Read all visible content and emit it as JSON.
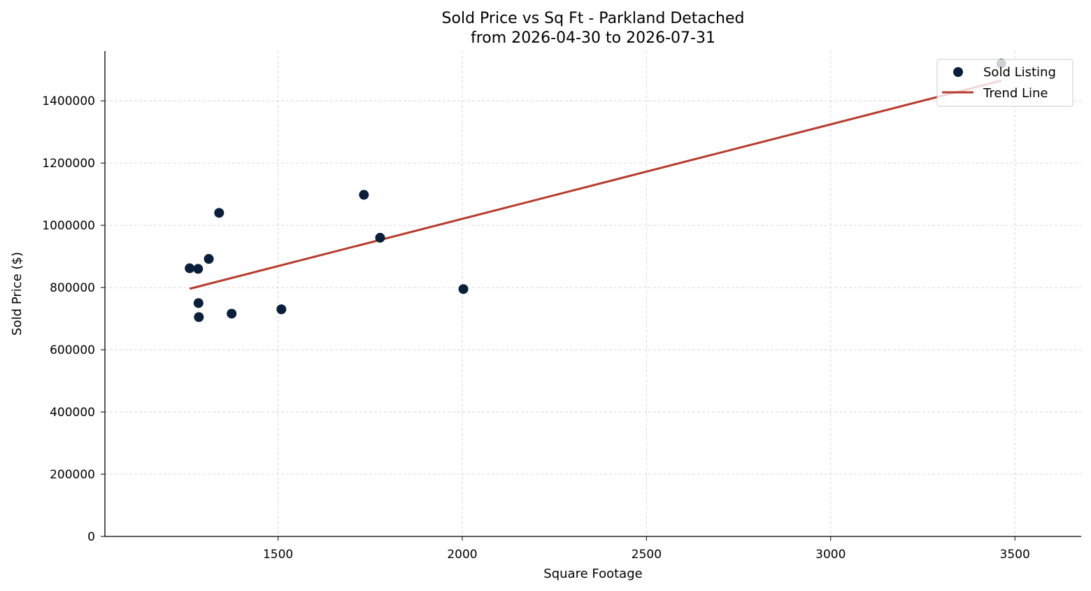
{
  "chart_data": {
    "type": "scatter",
    "title": "Sold Price vs Sq Ft - Parkland Detached",
    "subtitle": "from 2026-04-30 to 2026-07-31",
    "xlabel": "Square Footage",
    "ylabel": "Sold Price ($)",
    "xlim": [
      1030,
      3680
    ],
    "ylim": [
      0,
      1560000
    ],
    "xticks": [
      1500,
      2000,
      2500,
      3000,
      3500
    ],
    "yticks": [
      0,
      200000,
      400000,
      600000,
      800000,
      1000000,
      1200000,
      1400000
    ],
    "grid": true,
    "legend_position": "top-right",
    "series": [
      {
        "name": "Sold Listing",
        "kind": "scatter",
        "color": "#0b1f3a",
        "points": [
          {
            "x": 1260,
            "y": 862000
          },
          {
            "x": 1283,
            "y": 860000
          },
          {
            "x": 1284,
            "y": 750000
          },
          {
            "x": 1285,
            "y": 705000
          },
          {
            "x": 1312,
            "y": 892000
          },
          {
            "x": 1340,
            "y": 1040000
          },
          {
            "x": 1374,
            "y": 716000
          },
          {
            "x": 1509,
            "y": 730000
          },
          {
            "x": 1733,
            "y": 1098000
          },
          {
            "x": 1777,
            "y": 960000
          },
          {
            "x": 2003,
            "y": 795000
          },
          {
            "x": 3463,
            "y": 1520000
          }
        ]
      },
      {
        "name": "Trend Line",
        "kind": "line",
        "color": "#b53c2e",
        "points": [
          {
            "x": 1260,
            "y": 796000
          },
          {
            "x": 3463,
            "y": 1465000
          }
        ]
      }
    ]
  }
}
